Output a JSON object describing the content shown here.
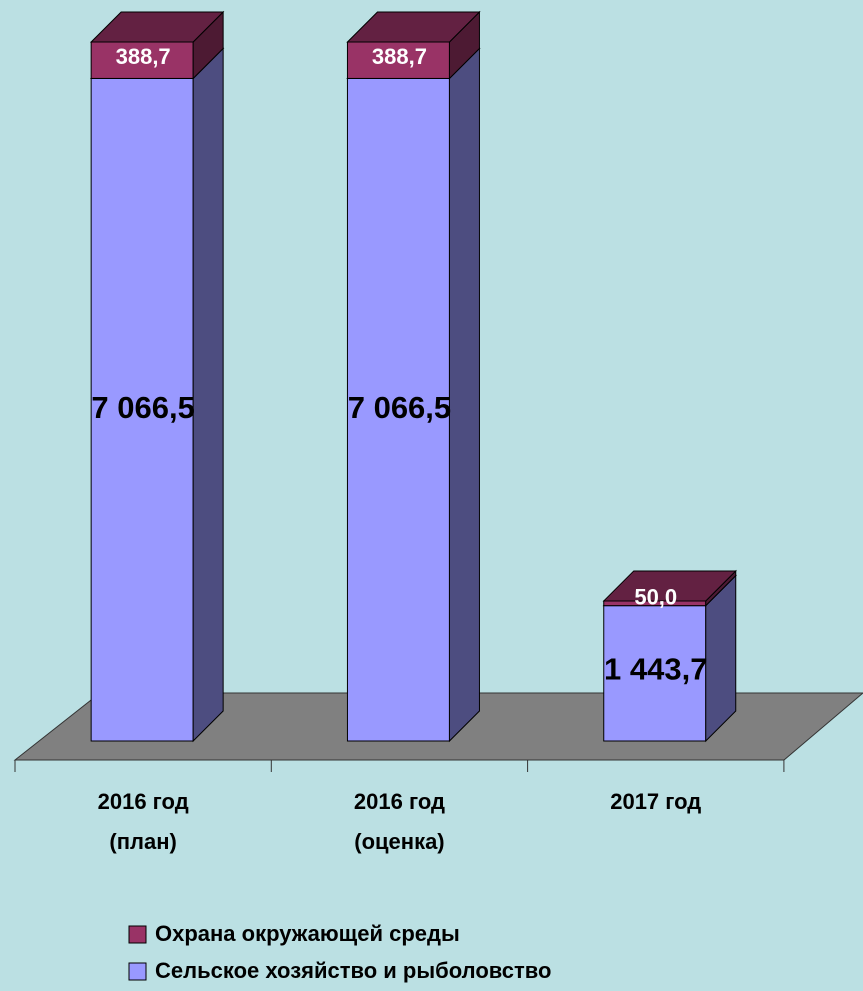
{
  "chart_data": {
    "type": "bar3d-stacked",
    "categories": [
      [
        "2016 год",
        "(план)"
      ],
      [
        "2016 год",
        "(оценка)"
      ],
      [
        "2017 год"
      ]
    ],
    "series": [
      {
        "name": "Сельское хозяйство и рыболовство",
        "color": "#9999ff",
        "values": [
          7066.5,
          7066.5,
          1443.7
        ],
        "value_labels": [
          "7 066,5",
          "7 066,5",
          "1 443,7"
        ]
      },
      {
        "name": "Охрана окружающей среды",
        "color": "#993366",
        "values": [
          388.7,
          388.7,
          50.0
        ],
        "value_labels": [
          "388,7",
          "388,7",
          "50,0"
        ]
      }
    ]
  }
}
